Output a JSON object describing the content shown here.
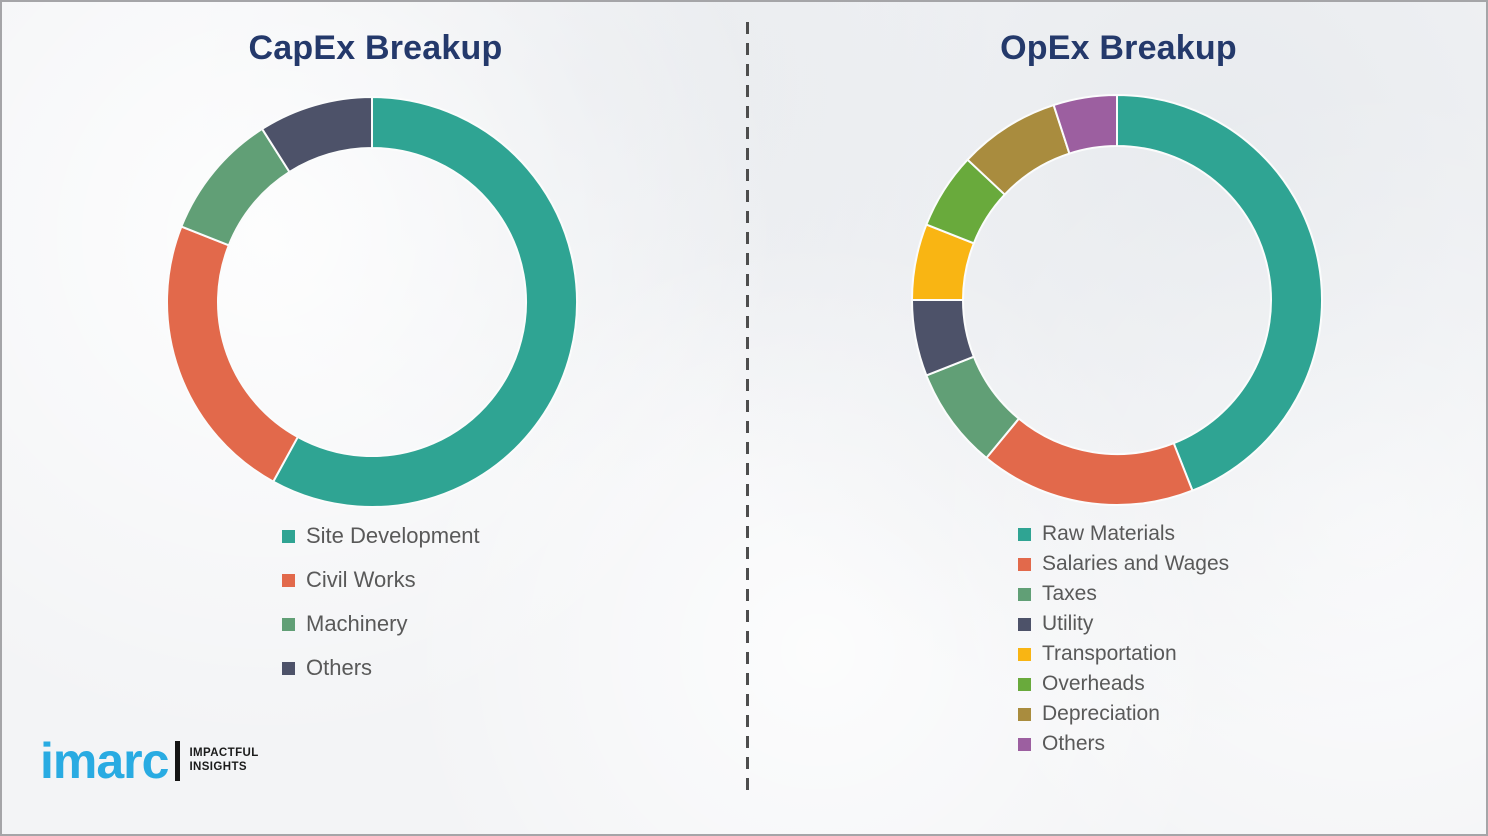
{
  "logo": {
    "brand": "imarc",
    "tagline_line1": "IMPACTFUL",
    "tagline_line2": "INSIGHTS",
    "brand_color": "#29abe2"
  },
  "style": {
    "title_color": "#24396b",
    "legend_text_color": "#595959",
    "background_color": "#f3f4f6",
    "segment_gap_color": "#fbfcfc"
  },
  "chart_data": [
    {
      "type": "pie",
      "subtype": "donut",
      "title": "CapEx Breakup",
      "legend_position": "below-left",
      "data_labels_shown": false,
      "values_note": "percent shares estimated from arc angles; no numeric labels shown in image",
      "categories": [
        "Site Development",
        "Civil Works",
        "Machinery",
        "Others"
      ],
      "values": [
        58,
        23,
        10,
        9
      ],
      "colors": [
        "#2fa493",
        "#e2694b",
        "#619f76",
        "#4d5269"
      ]
    },
    {
      "type": "pie",
      "subtype": "donut",
      "title": "OpEx Breakup",
      "legend_position": "below-left",
      "data_labels_shown": false,
      "values_note": "percent shares estimated from arc angles; no numeric labels shown in image",
      "categories": [
        "Raw Materials",
        "Salaries and Wages",
        "Taxes",
        "Utility",
        "Transportation",
        "Overheads",
        "Depreciation",
        "Others"
      ],
      "values": [
        44,
        17,
        8,
        6,
        6,
        6,
        8,
        5
      ],
      "colors": [
        "#2fa493",
        "#e2694b",
        "#619f76",
        "#4d5269",
        "#f9b513",
        "#69aa3c",
        "#a98c3e",
        "#9c5fa0"
      ]
    }
  ]
}
